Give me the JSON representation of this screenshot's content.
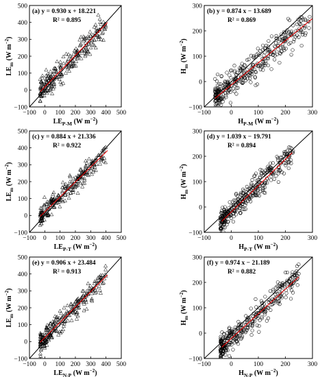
{
  "chart_data": [
    {
      "type": "scatter",
      "panel": "(a)",
      "equation": "y = 0.930 x + 18.221",
      "r2": "R² = 0.895",
      "ylabel": {
        "main": "LE",
        "sub": "m",
        "unit": " (W m",
        "exp": "−2",
        "close": ")"
      },
      "xlabel": {
        "main": "LE",
        "sub": "P-M",
        "unit": " (W m",
        "exp": "−2",
        "close": ")"
      },
      "xlim": [
        -100,
        500
      ],
      "ylim": [
        -100,
        500
      ],
      "xticks": [
        -100,
        0,
        100,
        200,
        300,
        400,
        500
      ],
      "yticks": [
        -100,
        0,
        100,
        200,
        300,
        400,
        500
      ],
      "xtick_labels": [
        "−100",
        "0",
        "100",
        "200",
        "300",
        "400",
        "500"
      ],
      "ytick_labels": [
        "−100",
        "0",
        "100",
        "200",
        "300",
        "400",
        "500"
      ],
      "marker": "triangle",
      "fit": {
        "slope": 0.93,
        "intercept": 18.221,
        "x_range": [
          -30,
          410
        ]
      },
      "one_to_one": true,
      "points_summary": {
        "n": 260,
        "x_min": -30,
        "x_max": 400,
        "scatter_sd": 35
      }
    },
    {
      "type": "scatter",
      "panel": "(b)",
      "equation": "y = 0.874 x − 13.689",
      "r2": "R² = 0.869",
      "ylabel": {
        "main": "H",
        "sub": "m",
        "unit": " (W m",
        "exp": "−2",
        "close": ")"
      },
      "xlabel": {
        "main": "H",
        "sub": "P-M",
        "unit": " (W m",
        "exp": "−2",
        "close": ")"
      },
      "xlim": [
        -100,
        300
      ],
      "ylim": [
        -100,
        300
      ],
      "xticks": [
        -100,
        0,
        100,
        200,
        300
      ],
      "yticks": [
        -100,
        0,
        100,
        200,
        300
      ],
      "xtick_labels": [
        "−100",
        "0",
        "100",
        "200",
        "300"
      ],
      "ytick_labels": [
        "−100",
        "0",
        "100",
        "200",
        "300"
      ],
      "marker": "circle",
      "fit": {
        "slope": 0.874,
        "intercept": -13.689,
        "x_range": [
          -60,
          300
        ]
      },
      "one_to_one": true,
      "points_summary": {
        "n": 360,
        "x_min": -60,
        "x_max": 290,
        "scatter_sd": 28
      }
    },
    {
      "type": "scatter",
      "panel": "(c)",
      "equation": "y = 0.884 x + 21.336",
      "r2": "R² = 0.922",
      "ylabel": {
        "main": "LE",
        "sub": "m",
        "unit": " (W m",
        "exp": "−2",
        "close": ")"
      },
      "xlabel": {
        "main": "LE",
        "sub": "P-T",
        "unit": " (W m",
        "exp": "−2",
        "close": ")"
      },
      "xlim": [
        -100,
        500
      ],
      "ylim": [
        -100,
        500
      ],
      "xticks": [
        -100,
        0,
        100,
        200,
        300,
        400,
        500
      ],
      "yticks": [
        -100,
        0,
        100,
        200,
        300,
        400,
        500
      ],
      "xtick_labels": [
        "−100",
        "0",
        "100",
        "200",
        "300",
        "400",
        "500"
      ],
      "ytick_labels": [
        "−100",
        "0",
        "100",
        "200",
        "300",
        "400",
        "500"
      ],
      "marker": "triangle",
      "fit": {
        "slope": 0.884,
        "intercept": 21.336,
        "x_range": [
          -30,
          410
        ]
      },
      "one_to_one": true,
      "points_summary": {
        "n": 260,
        "x_min": -30,
        "x_max": 400,
        "scatter_sd": 28
      }
    },
    {
      "type": "scatter",
      "panel": "(d)",
      "equation": "y = 1.039 x − 19.791",
      "r2": "R² = 0.894",
      "ylabel": {
        "main": "H",
        "sub": "m",
        "unit": " (W m",
        "exp": "−2",
        "close": ")"
      },
      "xlabel": {
        "main": "H",
        "sub": "P-T",
        "unit": " (W m",
        "exp": "−2",
        "close": ")"
      },
      "xlim": [
        -100,
        300
      ],
      "ylim": [
        -100,
        300
      ],
      "xticks": [
        -100,
        0,
        100,
        200,
        300
      ],
      "yticks": [
        -100,
        0,
        100,
        200,
        300
      ],
      "xtick_labels": [
        "−100",
        "0",
        "100",
        "200",
        "300"
      ],
      "ytick_labels": [
        "−100",
        "0",
        "100",
        "200",
        "300"
      ],
      "marker": "circle",
      "fit": {
        "slope": 1.039,
        "intercept": -19.791,
        "x_range": [
          -35,
          225
        ]
      },
      "one_to_one": true,
      "points_summary": {
        "n": 340,
        "x_min": -40,
        "x_max": 230,
        "scatter_sd": 24
      }
    },
    {
      "type": "scatter",
      "panel": "(e)",
      "equation": "y = 0.906 x + 23.484",
      "r2": "R² = 0.913",
      "ylabel": {
        "main": "LE",
        "sub": "m",
        "unit": " (W m",
        "exp": "−2",
        "close": ")"
      },
      "xlabel": {
        "main": "LE",
        "sub": "N-P",
        "unit": " (W m",
        "exp": "−2",
        "close": ")"
      },
      "xlim": [
        -100,
        500
      ],
      "ylim": [
        -100,
        500
      ],
      "xticks": [
        -100,
        0,
        100,
        200,
        300,
        400,
        500
      ],
      "yticks": [
        -100,
        0,
        100,
        200,
        300,
        400,
        500
      ],
      "xtick_labels": [
        "−100",
        "0",
        "100",
        "200",
        "300",
        "400",
        "500"
      ],
      "ytick_labels": [
        "−100",
        "0",
        "100",
        "200",
        "300",
        "400",
        "500"
      ],
      "marker": "triangle",
      "fit": {
        "slope": 0.906,
        "intercept": 23.484,
        "x_range": [
          -30,
          410
        ]
      },
      "one_to_one": true,
      "points_summary": {
        "n": 260,
        "x_min": -30,
        "x_max": 400,
        "scatter_sd": 30
      }
    },
    {
      "type": "scatter",
      "panel": "(f)",
      "equation": "y = 0.974 x − 21.189",
      "r2": "R² = 0.882",
      "ylabel": {
        "main": "H",
        "sub": "m",
        "unit": " (W m",
        "exp": "−2",
        "close": ")"
      },
      "xlabel": {
        "main": "H",
        "sub": "N-P",
        "unit": " (W m",
        "exp": "−2",
        "close": ")"
      },
      "xlim": [
        -100,
        300
      ],
      "ylim": [
        -100,
        300
      ],
      "xticks": [
        -100,
        0,
        100,
        200,
        300
      ],
      "yticks": [
        -100,
        0,
        100,
        200,
        300
      ],
      "xtick_labels": [
        "−100",
        "0",
        "100",
        "200",
        "300"
      ],
      "ytick_labels": [
        "−100",
        "0",
        "100",
        "200",
        "300"
      ],
      "marker": "circle",
      "fit": {
        "slope": 0.974,
        "intercept": -21.189,
        "x_range": [
          -35,
          250
        ]
      },
      "one_to_one": true,
      "points_summary": {
        "n": 340,
        "x_min": -40,
        "x_max": 250,
        "scatter_sd": 25
      }
    }
  ],
  "colors": {
    "axis": "#000000",
    "one_to_one_line": "#000000",
    "fit_line": "#e00000",
    "marker": "#000000"
  }
}
